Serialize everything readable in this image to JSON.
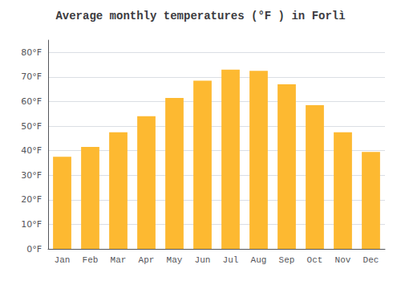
{
  "chart_data": {
    "type": "bar",
    "title": "Average monthly temperatures (°F ) in Forlì",
    "categories": [
      "Jan",
      "Feb",
      "Mar",
      "Apr",
      "May",
      "Jun",
      "Jul",
      "Aug",
      "Sep",
      "Oct",
      "Nov",
      "Dec"
    ],
    "values": [
      37.5,
      41.5,
      47.5,
      54.0,
      61.5,
      68.5,
      73.0,
      72.5,
      67.0,
      58.5,
      47.5,
      39.5
    ],
    "color": "#FDB931",
    "ylim": [
      0,
      85
    ],
    "yticks": [
      {
        "value": 0,
        "label": "0°F"
      },
      {
        "value": 10,
        "label": "10°F"
      },
      {
        "value": 20,
        "label": "20°F"
      },
      {
        "value": 30,
        "label": "30°F"
      },
      {
        "value": 40,
        "label": "40°F"
      },
      {
        "value": 50,
        "label": "50°F"
      },
      {
        "value": 60,
        "label": "60°F"
      },
      {
        "value": 70,
        "label": "70°F"
      },
      {
        "value": 80,
        "label": "80°F"
      }
    ],
    "grid": true
  }
}
